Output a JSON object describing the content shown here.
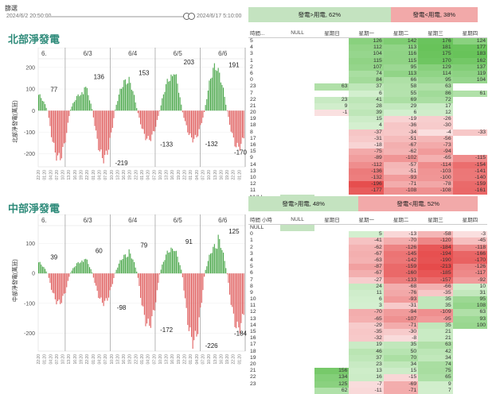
{
  "brand": "篩選",
  "date_start": "2024/6/2 20:50:00",
  "date_end": "2024/6/17 5:10:00",
  "colors": {
    "green": "#4ca84c",
    "red": "#e06060",
    "teal": "#2e8b7a"
  },
  "north": {
    "title": "北部淨發電",
    "ylabel": "北部淨發電(萬瓩)",
    "ratio": [
      {
        "label": "發電>用電, 62%",
        "pct": 62,
        "color": "#c4e3c0"
      },
      {
        "label": "發電<用電, 38%",
        "pct": 38,
        "color": "#f2a9a9"
      }
    ],
    "headers": [
      "時間...",
      "NULL",
      "星期日",
      "星期一",
      "星期二",
      "星期三",
      "星期四"
    ],
    "rows": [
      [
        "5",
        "",
        "",
        "126",
        "142",
        "176",
        "124"
      ],
      [
        "4",
        "",
        "",
        "112",
        "113",
        "181",
        "177"
      ],
      [
        "3",
        "",
        "",
        "104",
        "116",
        "175",
        "183"
      ],
      [
        "1",
        "",
        "",
        "115",
        "115",
        "170",
        "162"
      ],
      [
        "2",
        "",
        "",
        "107",
        "95",
        "129",
        "137"
      ],
      [
        "6",
        "",
        "",
        "74",
        "113",
        "114",
        "119"
      ],
      [
        "0",
        "",
        "",
        "84",
        "66",
        "95",
        "104"
      ],
      [
        "23",
        "",
        "63",
        "37",
        "58",
        "63",
        ""
      ],
      [
        "7",
        "",
        "",
        "6",
        "55",
        "86",
        "61"
      ],
      [
        "22",
        "",
        "23",
        "41",
        "69",
        "72",
        ""
      ],
      [
        "21",
        "",
        "9",
        "28",
        "29",
        "17",
        ""
      ],
      [
        "20",
        "",
        "-1",
        "39",
        "6",
        "12",
        ""
      ],
      [
        "19",
        "",
        "",
        "15",
        "-19",
        "-26",
        ""
      ],
      [
        "18",
        "",
        "",
        "4",
        "-36",
        "-30",
        ""
      ],
      [
        "8",
        "",
        "",
        "-37",
        "-34",
        "-4",
        "-33"
      ],
      [
        "17",
        "",
        "",
        "-31",
        "-51",
        "-56",
        ""
      ],
      [
        "16",
        "",
        "",
        "-18",
        "-67",
        "-73",
        ""
      ],
      [
        "15",
        "",
        "",
        "-75",
        "-62",
        "-94",
        ""
      ],
      [
        "9",
        "",
        "",
        "-89",
        "-102",
        "-65",
        "-115"
      ],
      [
        "14",
        "",
        "",
        "-112",
        "-57",
        "-114",
        "-154"
      ],
      [
        "13",
        "",
        "",
        "-136",
        "-51",
        "-103",
        "-141"
      ],
      [
        "10",
        "",
        "",
        "-132",
        "-93",
        "-100",
        "-140"
      ],
      [
        "12",
        "",
        "",
        "-196",
        "-71",
        "-78",
        "-159"
      ],
      [
        "11",
        "",
        "",
        "-177",
        "-108",
        "-108",
        "-161"
      ],
      [
        "NULL",
        "",
        "",
        "",
        "",
        "",
        ""
      ]
    ],
    "days": [
      "6/3",
      "6/4",
      "6/5",
      "6/6"
    ],
    "peaks": [
      {
        "label": "77",
        "value": 77
      },
      {
        "label": "136",
        "value": 136
      },
      {
        "label": "-219",
        "value": -219
      },
      {
        "label": "153",
        "value": 153
      },
      {
        "label": "-133",
        "value": -133
      },
      {
        "label": "203",
        "value": 203
      },
      {
        "label": "-132",
        "value": -132
      },
      {
        "label": "191",
        "value": 191
      },
      {
        "label": "-170",
        "value": -170
      }
    ],
    "yticks": [
      "200",
      "100",
      "0",
      "-100",
      "-200"
    ],
    "ylim": [
      -260,
      240
    ]
  },
  "central": {
    "title": "中部淨發電",
    "ylabel": "中部淨發電(萬瓩)",
    "ratio": [
      {
        "label": "發電>用電, 48%",
        "pct": 48,
        "color": "#c4e3c0"
      },
      {
        "label": "發電<用電, 52%",
        "pct": 52,
        "color": "#f2a9a9"
      }
    ],
    "headers": [
      "時間 小時",
      "NULL",
      "星期日",
      "星期一",
      "星期二",
      "星期三",
      "星期四"
    ],
    "rows": [
      [
        "NULL",
        "",
        "",
        "",
        "",
        "",
        ""
      ],
      [
        "0",
        "",
        "",
        "5",
        "-13",
        "-58",
        "-3"
      ],
      [
        "1",
        "",
        "",
        "-41",
        "-70",
        "-120",
        "-45"
      ],
      [
        "2",
        "",
        "",
        "-62",
        "-126",
        "-184",
        "-118"
      ],
      [
        "3",
        "",
        "",
        "-67",
        "-145",
        "-194",
        "-166"
      ],
      [
        "4",
        "",
        "",
        "-63",
        "-142",
        "-190",
        "-170"
      ],
      [
        "5",
        "",
        "",
        "-87",
        "-159",
        "-213",
        "-126"
      ],
      [
        "6",
        "",
        "",
        "-67",
        "-160",
        "-185",
        "-117"
      ],
      [
        "7",
        "",
        "",
        "-27",
        "-133",
        "-157",
        "-92"
      ],
      [
        "8",
        "",
        "",
        "24",
        "-68",
        "-66",
        "10"
      ],
      [
        "9",
        "",
        "",
        "11",
        "-76",
        "-35",
        "31"
      ],
      [
        "10",
        "",
        "",
        "6",
        "-93",
        "35",
        "95"
      ],
      [
        "11",
        "",
        "",
        "3",
        "-31",
        "35",
        "108"
      ],
      [
        "12",
        "",
        "",
        "-70",
        "-94",
        "-109",
        "63"
      ],
      [
        "13",
        "",
        "",
        "-65",
        "-107",
        "-95",
        "93"
      ],
      [
        "14",
        "",
        "",
        "-29",
        "-71",
        "35",
        "100"
      ],
      [
        "15",
        "",
        "",
        "-35",
        "-30",
        "21",
        ""
      ],
      [
        "16",
        "",
        "",
        "-32",
        "-8",
        "21",
        ""
      ],
      [
        "17",
        "",
        "",
        "19",
        "35",
        "63",
        ""
      ],
      [
        "18",
        "",
        "",
        "46",
        "50",
        "42",
        ""
      ],
      [
        "19",
        "",
        "",
        "37",
        "70",
        "34",
        ""
      ],
      [
        "20",
        "",
        "",
        "23",
        "34",
        "74",
        ""
      ],
      [
        "21",
        "",
        "156",
        "13",
        "15",
        "75",
        ""
      ],
      [
        "22",
        "",
        "134",
        "16",
        "-15",
        "65",
        ""
      ],
      [
        "23",
        "",
        "125",
        "-7",
        "-69",
        "9",
        ""
      ],
      [
        "",
        "",
        "62",
        "-11",
        "-71",
        "7",
        ""
      ]
    ],
    "days": [
      "6/3",
      "6/4",
      "6/5",
      "6/6"
    ],
    "peaks": [
      {
        "label": "39",
        "value": 39
      },
      {
        "label": "-98",
        "value": -98
      },
      {
        "label": "60",
        "value": 60
      },
      {
        "label": "-172",
        "value": -172
      },
      {
        "label": "79",
        "value": 79
      },
      {
        "label": "-226",
        "value": -226
      },
      {
        "label": "91",
        "value": 91
      },
      {
        "label": "-184",
        "value": -184
      },
      {
        "label": "125",
        "value": 125
      }
    ],
    "yticks": [
      "100",
      "0",
      "-100",
      "-200"
    ],
    "ylim": [
      -260,
      160
    ]
  }
}
